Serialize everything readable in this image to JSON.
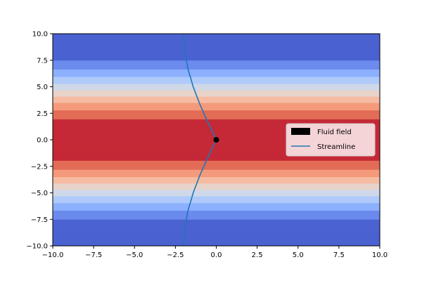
{
  "chart_data": {
    "type": "heatmap",
    "title": "",
    "xlabel": "",
    "ylabel": "",
    "xlim": [
      -10,
      10
    ],
    "ylim": [
      -10,
      10
    ],
    "grid": false,
    "x_ticks": [
      -10,
      -7.5,
      -5,
      -2.5,
      0,
      2.5,
      5,
      7.5,
      10
    ],
    "y_ticks": [
      -10,
      -7.5,
      -5,
      -2.5,
      0,
      2.5,
      5,
      7.5,
      10
    ],
    "x_tick_labels": [
      "−10.0",
      "−7.5",
      "−5.0",
      "−2.5",
      "0.0",
      "2.5",
      "5.0",
      "7.5",
      "10.0"
    ],
    "y_tick_labels": [
      "−10.0",
      "−7.5",
      "−5.0",
      "−2.5",
      "0.0",
      "2.5",
      "5.0",
      "7.5",
      "10.0"
    ],
    "colormap": "coolwarm",
    "field": {
      "name": "Fluid field",
      "function": "cos(y/3)",
      "value_range": [
        -1,
        1
      ],
      "levels": 10
    },
    "streamline": {
      "name": "Streamline",
      "color": "#1f77b4",
      "x": [
        -2.0,
        -1.93,
        -1.73,
        -1.41,
        -1.0,
        -0.52,
        0.0,
        -0.52,
        -1.0,
        -1.41,
        -1.73,
        -1.93,
        -2.0
      ],
      "y": [
        -10.0,
        -8.33,
        -6.67,
        -5.0,
        -3.33,
        -1.67,
        0.0,
        1.67,
        3.33,
        5.0,
        6.67,
        8.33,
        10.0
      ]
    },
    "point": {
      "x": 0,
      "y": 0,
      "color": "#000000"
    },
    "legend": {
      "placement": "center-right",
      "entries": [
        {
          "label": "Fluid field",
          "marker": "patch",
          "color": "#000000"
        },
        {
          "label": "Streamline",
          "marker": "line",
          "color": "#1f77b4"
        }
      ]
    }
  }
}
